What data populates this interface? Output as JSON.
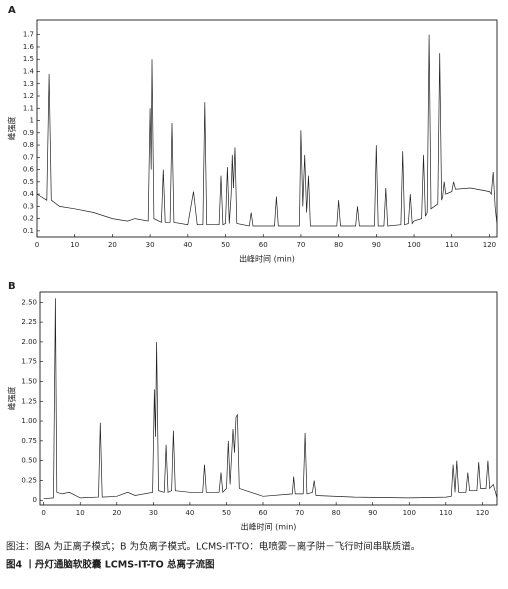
{
  "chart_data": [
    {
      "type": "line",
      "panel_label": "A",
      "y_label": "峰强度",
      "x_label": "出峰时间 (min)",
      "color": "#222222",
      "xlim": [
        0,
        122
      ],
      "xticks": [
        0,
        10,
        20,
        30,
        40,
        50,
        60,
        70,
        80,
        90,
        100,
        110,
        120
      ],
      "ylim": [
        0.05,
        1.82
      ],
      "yticks": [
        0.1,
        0.2,
        0.3,
        0.4,
        0.5,
        0.6,
        0.7,
        0.8,
        0.9,
        1,
        1.1,
        1.2,
        1.3,
        1.4,
        1.5,
        1.6,
        1.7
      ],
      "x": [
        0,
        1,
        2.6,
        3.2,
        3.8,
        6,
        10,
        15,
        20,
        24,
        26,
        29.5,
        30.0,
        30.3,
        30.5,
        31.0,
        33,
        33.5,
        34,
        35.3,
        35.8,
        36.3,
        40,
        41.5,
        42.5,
        44,
        44.5,
        45,
        48.3,
        48.8,
        49.3,
        50,
        50.5,
        51,
        51.5,
        51.8,
        52.1,
        52.5,
        53,
        56.3,
        56.8,
        57.3,
        60,
        63,
        63.5,
        64,
        68,
        69.6,
        70,
        70.5,
        71,
        71.5,
        72,
        72.5,
        79.5,
        80,
        80.5,
        84.5,
        85,
        85.5,
        89.5,
        90,
        90.5,
        92,
        92.5,
        93,
        96.5,
        97,
        97.5,
        98.5,
        99,
        99.5,
        100,
        102,
        102.5,
        103,
        103.5,
        104,
        104.5,
        106.3,
        106.8,
        107.3,
        107.6,
        108,
        108.4,
        110,
        110.5,
        111,
        115,
        120,
        120.5,
        121,
        121.5,
        122
      ],
      "values": [
        0.4,
        0.38,
        0.35,
        1.38,
        0.35,
        0.3,
        0.28,
        0.25,
        0.2,
        0.18,
        0.2,
        0.18,
        1.1,
        0.6,
        1.5,
        0.2,
        0.17,
        0.6,
        0.17,
        0.17,
        0.98,
        0.17,
        0.15,
        0.42,
        0.15,
        0.15,
        1.15,
        0.15,
        0.15,
        0.55,
        0.15,
        0.16,
        0.62,
        0.16,
        0.4,
        0.72,
        0.45,
        0.78,
        0.16,
        0.14,
        0.25,
        0.14,
        0.14,
        0.14,
        0.38,
        0.14,
        0.14,
        0.14,
        0.92,
        0.3,
        0.72,
        0.25,
        0.55,
        0.14,
        0.14,
        0.35,
        0.14,
        0.14,
        0.3,
        0.14,
        0.14,
        0.8,
        0.14,
        0.14,
        0.45,
        0.14,
        0.15,
        0.75,
        0.15,
        0.16,
        0.4,
        0.16,
        0.18,
        0.2,
        0.72,
        0.22,
        0.25,
        1.7,
        0.28,
        0.32,
        1.55,
        0.35,
        0.38,
        0.5,
        0.4,
        0.42,
        0.5,
        0.44,
        0.45,
        0.42,
        0.4,
        0.58,
        0.3,
        0.15
      ]
    },
    {
      "type": "line",
      "panel_label": "B",
      "y_label": "峰强度",
      "x_label": "出峰时间 (min)",
      "color": "#222222",
      "xlim": [
        -1,
        124
      ],
      "xticks": [
        0,
        10,
        20,
        30,
        40,
        50,
        60,
        70,
        80,
        90,
        100,
        110,
        120
      ],
      "ylim": [
        -0.06,
        2.63
      ],
      "yticks": [
        0,
        {
          "value": 0.25,
          "label": "0.25"
        },
        {
          "value": 0.5,
          "label": "0.50"
        },
        {
          "value": 0.75,
          "label": "0.75"
        },
        {
          "value": 1,
          "label": "1.00"
        },
        {
          "value": 1.25,
          "label": "1.25"
        },
        {
          "value": 1.5,
          "label": "1.50"
        },
        {
          "value": 1.75,
          "label": "1.75"
        },
        {
          "value": 2,
          "label": "2.00"
        },
        {
          "value": 2.25,
          "label": "2.25"
        },
        {
          "value": 2.5,
          "label": "2.50"
        }
      ],
      "x": [
        0,
        2.7,
        3.2,
        3.6,
        5,
        7,
        10,
        15,
        15.5,
        16,
        20,
        23,
        25,
        29.8,
        30.3,
        30.6,
        30.9,
        31.4,
        33,
        33.5,
        34,
        35,
        35.5,
        36,
        40,
        43.5,
        44,
        44.5,
        48,
        48.5,
        49,
        50,
        50.5,
        51,
        51.8,
        52.2,
        52.6,
        53,
        53.5,
        60,
        68,
        68.4,
        68.8,
        71,
        71.5,
        72,
        73.5,
        74,
        74.5,
        85,
        100,
        110,
        111.5,
        112,
        112.5,
        113,
        113.5,
        115.5,
        116,
        116.5,
        118.5,
        119,
        119.5,
        121,
        121.5,
        122,
        123,
        124
      ],
      "values": [
        0.02,
        0.03,
        2.55,
        0.1,
        0.08,
        0.1,
        0.03,
        0.04,
        0.98,
        0.04,
        0.05,
        0.1,
        0.06,
        0.1,
        1.4,
        0.8,
        2.0,
        0.12,
        0.1,
        0.7,
        0.1,
        0.12,
        0.88,
        0.12,
        0.1,
        0.1,
        0.45,
        0.1,
        0.1,
        0.35,
        0.1,
        0.15,
        0.75,
        0.2,
        0.9,
        0.6,
        1.05,
        1.08,
        0.15,
        0.05,
        0.08,
        0.3,
        0.08,
        0.08,
        0.85,
        0.08,
        0.1,
        0.25,
        0.06,
        0.04,
        0.03,
        0.04,
        0.05,
        0.45,
        0.1,
        0.5,
        0.1,
        0.1,
        0.35,
        0.12,
        0.12,
        0.48,
        0.15,
        0.15,
        0.5,
        0.15,
        0.2,
        0.03
      ]
    }
  ],
  "caption": "图注：图A 为正离子模式；B 为负离子模式。LCMS-IT-TO：电喷雾－离子阱－飞行时间串联质谱。",
  "figure_title": "图4 丨丹灯通脑软胶囊 LCMS-IT-TO 总离子流图"
}
